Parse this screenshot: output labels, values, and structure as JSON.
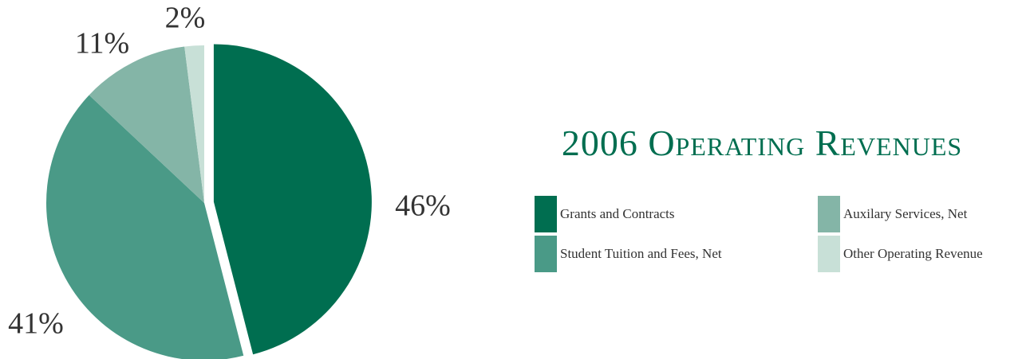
{
  "chart_data": {
    "type": "pie",
    "title": "2006 Operating Revenues",
    "categories": [
      "Grants and Contracts",
      "Student Tuition and Fees, Net",
      "Auxilary Services, Net",
      "Other Operating Revenue"
    ],
    "values": [
      46,
      41,
      11,
      2
    ],
    "value_labels": [
      "46%",
      "41%",
      "11%",
      "2%"
    ],
    "colors": [
      "#006e50",
      "#4a9a87",
      "#84b5a7",
      "#c8e0d7"
    ],
    "explode": [
      true,
      false,
      false,
      false
    ]
  }
}
